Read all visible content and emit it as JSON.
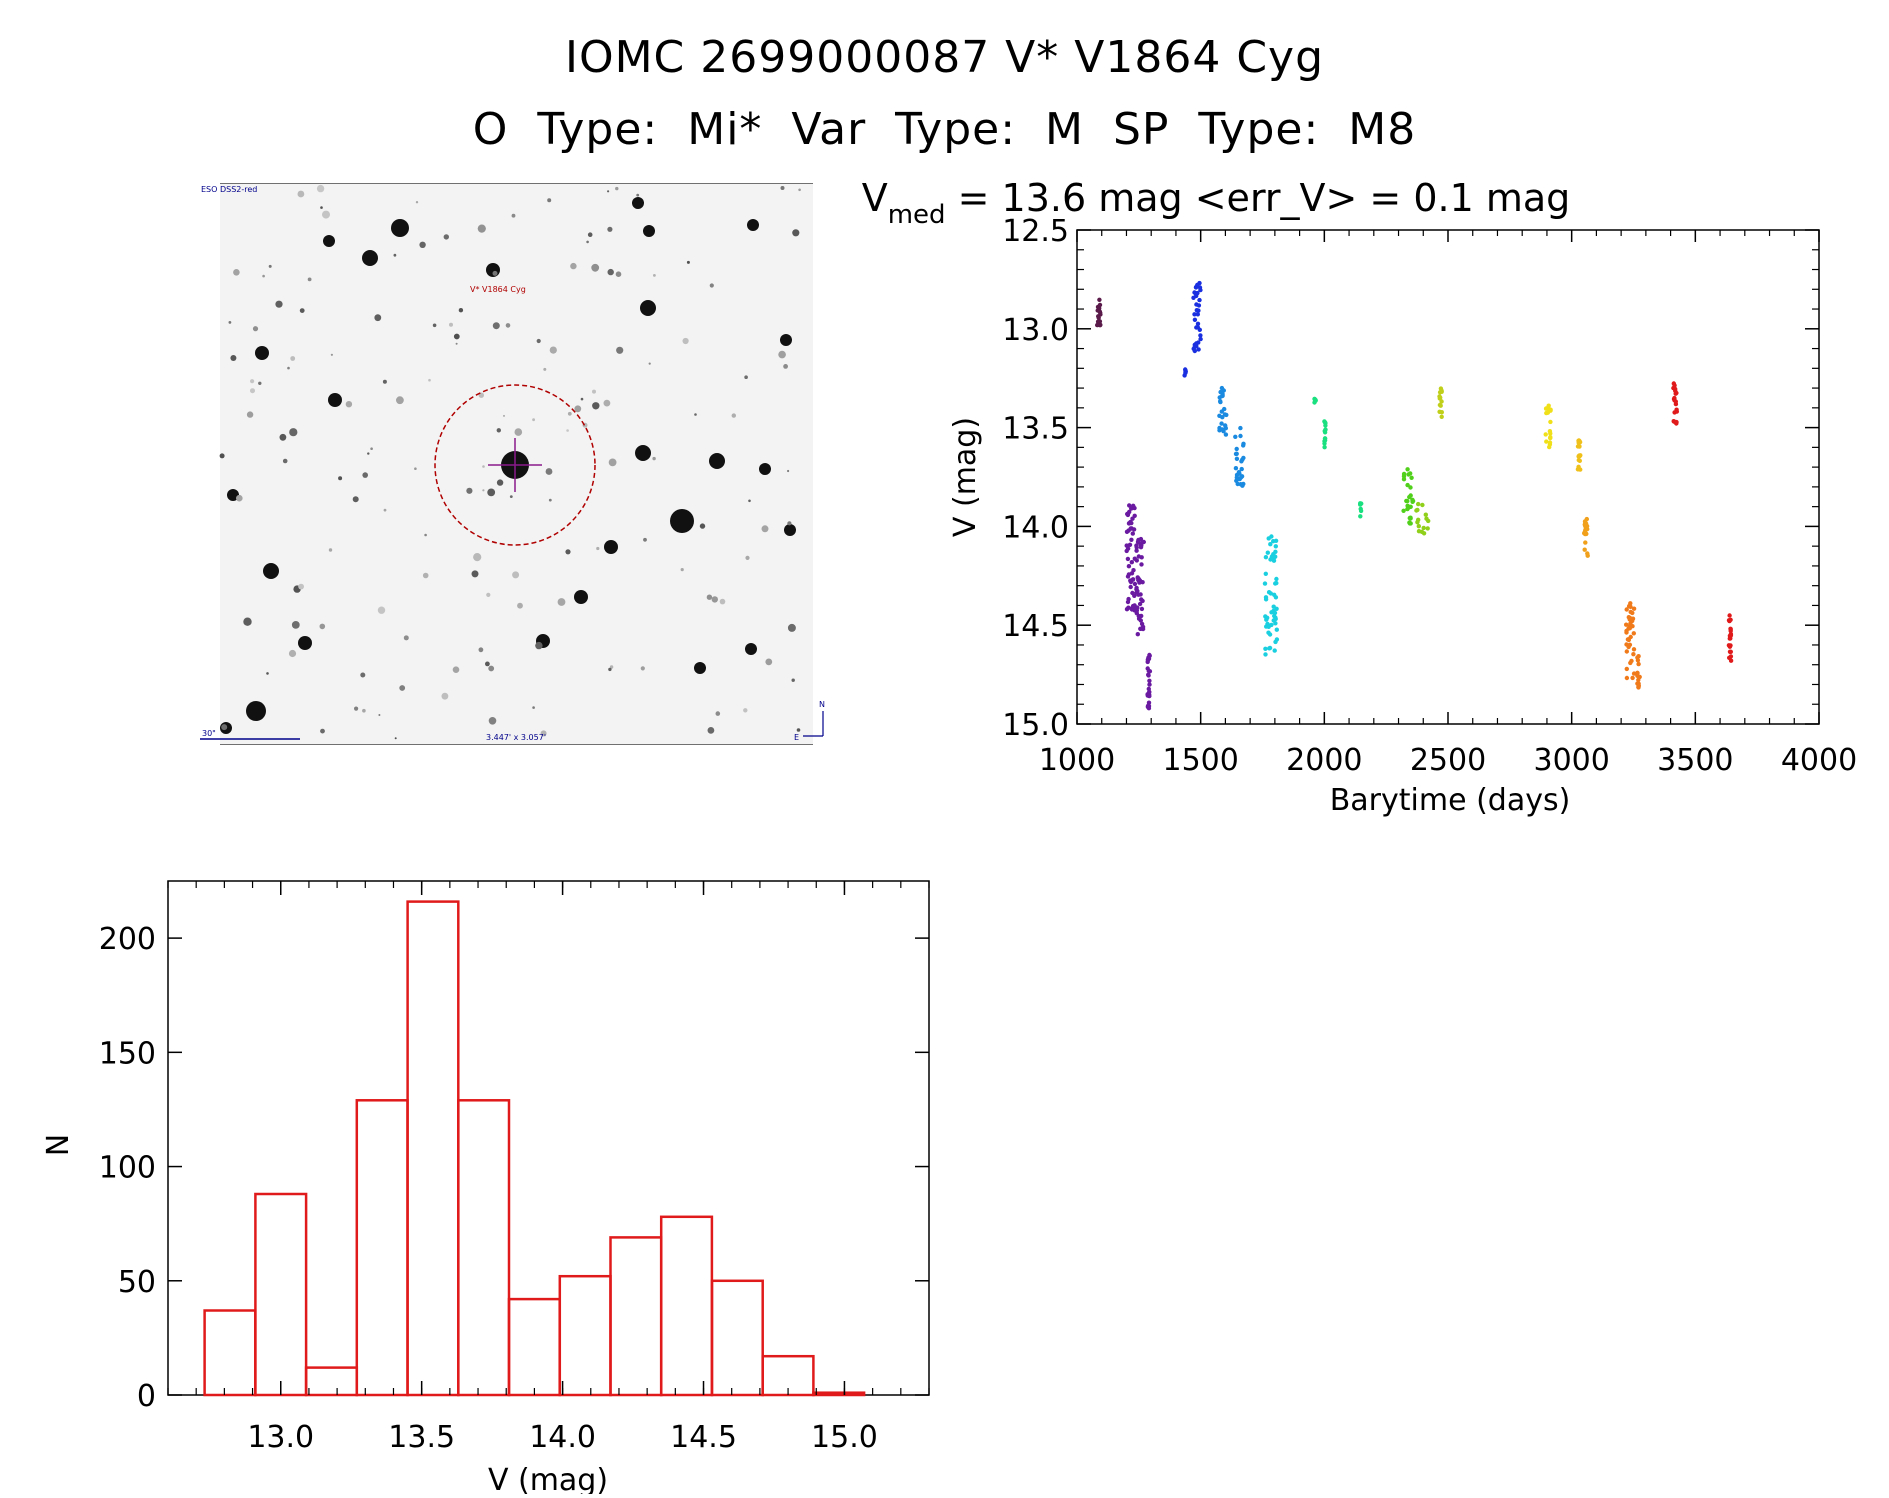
{
  "header": {
    "line1": "IOMC 2699000087   V* V1864 Cyg",
    "line2": "O Type: Mi*  Var Type: M  SP Type: M8"
  },
  "finder_chart": {
    "survey_label": "ESO DSS2-red",
    "target_label": "V* V1864 Cyg",
    "scale_label": "30\"",
    "fov_label": "3.447' x 3.057'",
    "north_label": "N",
    "east_label": "E",
    "colors": {
      "circle": "#b00000",
      "crosshair": "#8a1a8a",
      "labels": "#00008b",
      "target_text": "#b00000"
    }
  },
  "chart_data": [
    {
      "type": "scatter",
      "title": "V_med = 13.6 mag <err_V> = 0.1 mag",
      "title_main": "V",
      "title_sub": "med",
      "title_rest": " = 13.6 mag <err_V> = 0.1 mag",
      "xlabel": "Barytime (days)",
      "ylabel": "V (mag)",
      "xlim": [
        1000,
        4000
      ],
      "ylim": [
        15.0,
        12.5
      ],
      "y_inverted": true,
      "xticks": [
        "1000",
        "1500",
        "2000",
        "2500",
        "3000",
        "3500",
        "4000"
      ],
      "yticks": [
        "12.5",
        "13.0",
        "13.5",
        "14.0",
        "14.5",
        "15.0"
      ],
      "series": [
        {
          "color": "#5a1a4a",
          "x": [
            1080,
            1095
          ],
          "y": [
            12.85,
            13.03
          ]
        },
        {
          "color": "#6a1aa0",
          "x": [
            1200,
            1235
          ],
          "y": [
            13.88,
            14.45
          ]
        },
        {
          "color": "#6a1aa0",
          "x": [
            1240,
            1270
          ],
          "y": [
            14.05,
            14.55
          ]
        },
        {
          "color": "#6a1aa0",
          "x": [
            1285,
            1295
          ],
          "y": [
            14.65,
            14.95
          ]
        },
        {
          "color": "#1a30e0",
          "x": [
            1435,
            1440
          ],
          "y": [
            13.2,
            13.25
          ]
        },
        {
          "color": "#1a30e0",
          "x": [
            1470,
            1500
          ],
          "y": [
            12.75,
            13.12
          ]
        },
        {
          "color": "#1a8ae0",
          "x": [
            1575,
            1605
          ],
          "y": [
            13.3,
            13.55
          ]
        },
        {
          "color": "#1a8ae0",
          "x": [
            1640,
            1675
          ],
          "y": [
            13.5,
            13.8
          ]
        },
        {
          "color": "#1ad0e0",
          "x": [
            1760,
            1810
          ],
          "y": [
            14.05,
            14.65
          ]
        },
        {
          "color": "#1ae080",
          "x": [
            1960,
            1965
          ],
          "y": [
            13.35,
            13.4
          ]
        },
        {
          "color": "#1ae080",
          "x": [
            2000,
            2005
          ],
          "y": [
            13.45,
            13.6
          ]
        },
        {
          "color": "#1ae080",
          "x": [
            2145,
            2150
          ],
          "y": [
            13.88,
            13.95
          ]
        },
        {
          "color": "#50d01a",
          "x": [
            2320,
            2360
          ],
          "y": [
            13.7,
            14.0
          ]
        },
        {
          "color": "#90d01a",
          "x": [
            2370,
            2420
          ],
          "y": [
            13.88,
            14.05
          ]
        },
        {
          "color": "#c0d01a",
          "x": [
            2465,
            2475
          ],
          "y": [
            13.3,
            13.45
          ]
        },
        {
          "color": "#f0e01a",
          "x": [
            2895,
            2915
          ],
          "y": [
            13.38,
            13.6
          ]
        },
        {
          "color": "#f0c01a",
          "x": [
            3025,
            3035
          ],
          "y": [
            13.52,
            13.72
          ]
        },
        {
          "color": "#f0a01a",
          "x": [
            3050,
            3065
          ],
          "y": [
            13.95,
            14.15
          ]
        },
        {
          "color": "#f07a1a",
          "x": [
            3220,
            3255
          ],
          "y": [
            14.38,
            14.8
          ]
        },
        {
          "color": "#f07a1a",
          "x": [
            3265,
            3275
          ],
          "y": [
            14.65,
            14.82
          ]
        },
        {
          "color": "#e01a1a",
          "x": [
            3410,
            3425
          ],
          "y": [
            13.27,
            13.48
          ]
        },
        {
          "color": "#e01a1a",
          "x": [
            3635,
            3645
          ],
          "y": [
            14.45,
            14.68
          ]
        }
      ]
    },
    {
      "type": "bar",
      "title": "",
      "xlabel": "V (mag)",
      "ylabel": "N",
      "xlim": [
        12.6,
        15.3
      ],
      "ylim": [
        0,
        225
      ],
      "xticks": [
        "13.0",
        "13.5",
        "14.0",
        "14.5",
        "15.0"
      ],
      "yticks": [
        "0",
        "50",
        "100",
        "150",
        "200"
      ],
      "bin_edges": [
        12.73,
        12.91,
        13.09,
        13.27,
        13.45,
        13.63,
        13.81,
        13.99,
        14.17,
        14.35,
        14.53,
        14.71,
        14.89,
        15.07
      ],
      "counts": [
        37,
        88,
        12,
        129,
        216,
        129,
        42,
        52,
        69,
        78,
        50,
        17,
        1
      ],
      "color": "#e01a1a"
    }
  ]
}
